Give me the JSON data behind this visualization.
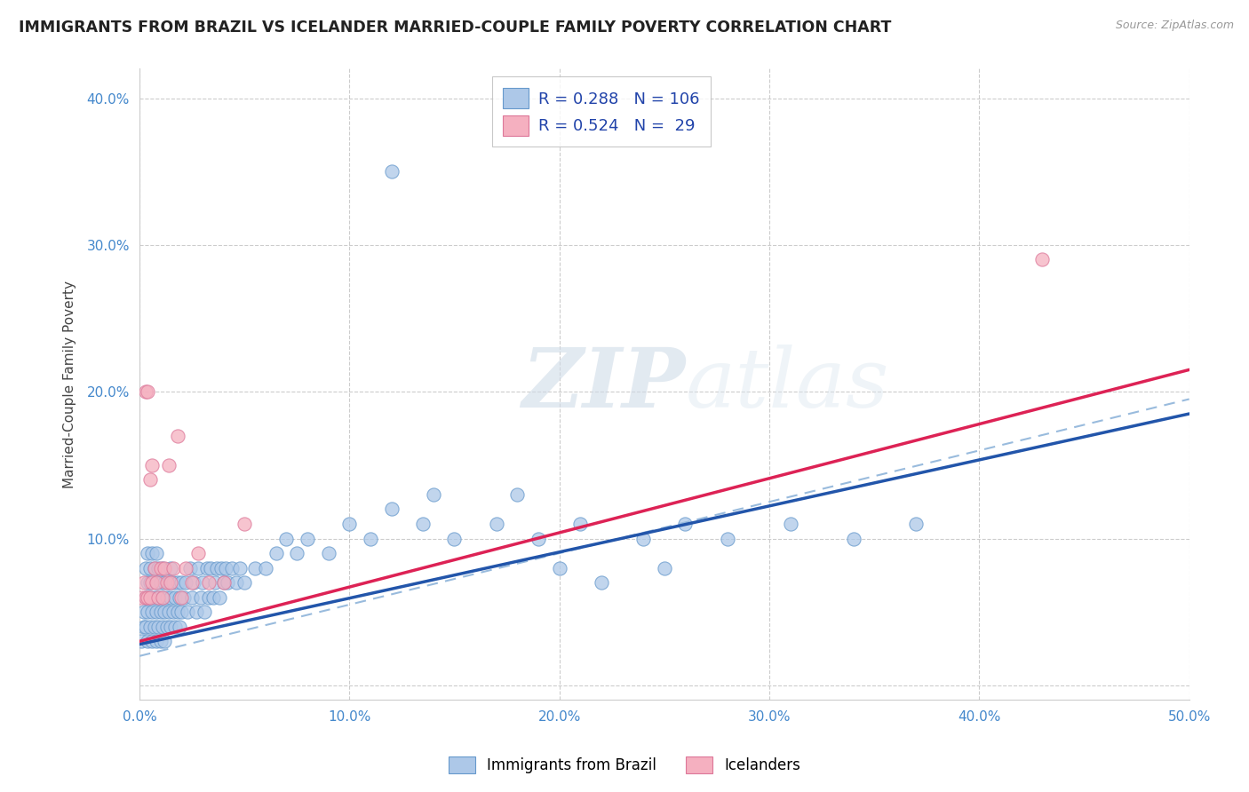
{
  "title": "IMMIGRANTS FROM BRAZIL VS ICELANDER MARRIED-COUPLE FAMILY POVERTY CORRELATION CHART",
  "source": "Source: ZipAtlas.com",
  "ylabel": "Married-Couple Family Poverty",
  "xlim": [
    0.0,
    0.5
  ],
  "ylim": [
    -0.01,
    0.42
  ],
  "xticks": [
    0.0,
    0.1,
    0.2,
    0.3,
    0.4,
    0.5
  ],
  "xtick_labels": [
    "0.0%",
    "10.0%",
    "20.0%",
    "30.0%",
    "40.0%",
    "50.0%"
  ],
  "yticks": [
    0.0,
    0.1,
    0.2,
    0.3,
    0.4
  ],
  "ytick_labels": [
    "",
    "10.0%",
    "20.0%",
    "30.0%",
    "40.0%"
  ],
  "brazil_color": "#adc8e8",
  "brazil_edge": "#6699cc",
  "iceland_color": "#f5b0c0",
  "iceland_edge": "#dd7799",
  "trend_brazil_color": "#2255aa",
  "trend_iceland_color": "#dd2255",
  "trend_dashed_color": "#99bbdd",
  "R_brazil": 0.288,
  "N_brazil": 106,
  "R_iceland": 0.524,
  "N_iceland": 29,
  "watermark_zip": "ZIP",
  "watermark_atlas": "atlas",
  "legend_brazil": "Immigrants from Brazil",
  "legend_iceland": "Icelanders",
  "brazil_x": [
    0.001,
    0.002,
    0.002,
    0.003,
    0.003,
    0.003,
    0.004,
    0.004,
    0.004,
    0.004,
    0.005,
    0.005,
    0.005,
    0.005,
    0.006,
    0.006,
    0.006,
    0.007,
    0.007,
    0.007,
    0.008,
    0.008,
    0.008,
    0.008,
    0.009,
    0.009,
    0.009,
    0.01,
    0.01,
    0.01,
    0.011,
    0.011,
    0.011,
    0.012,
    0.012,
    0.012,
    0.013,
    0.013,
    0.014,
    0.014,
    0.015,
    0.015,
    0.015,
    0.016,
    0.016,
    0.017,
    0.017,
    0.018,
    0.018,
    0.019,
    0.019,
    0.02,
    0.02,
    0.021,
    0.022,
    0.023,
    0.024,
    0.025,
    0.026,
    0.027,
    0.028,
    0.029,
    0.03,
    0.031,
    0.032,
    0.033,
    0.034,
    0.035,
    0.036,
    0.037,
    0.038,
    0.039,
    0.04,
    0.041,
    0.042,
    0.044,
    0.046,
    0.048,
    0.05,
    0.055,
    0.06,
    0.065,
    0.07,
    0.075,
    0.08,
    0.09,
    0.1,
    0.11,
    0.12,
    0.135,
    0.15,
    0.17,
    0.19,
    0.21,
    0.24,
    0.26,
    0.28,
    0.31,
    0.34,
    0.37,
    0.12,
    0.14,
    0.18,
    0.2,
    0.22,
    0.25
  ],
  "brazil_y": [
    0.03,
    0.05,
    0.04,
    0.06,
    0.08,
    0.04,
    0.05,
    0.07,
    0.09,
    0.03,
    0.06,
    0.08,
    0.04,
    0.07,
    0.05,
    0.09,
    0.03,
    0.06,
    0.08,
    0.04,
    0.07,
    0.05,
    0.09,
    0.03,
    0.06,
    0.08,
    0.04,
    0.05,
    0.07,
    0.03,
    0.06,
    0.08,
    0.04,
    0.05,
    0.07,
    0.03,
    0.06,
    0.04,
    0.07,
    0.05,
    0.06,
    0.08,
    0.04,
    0.05,
    0.07,
    0.06,
    0.04,
    0.07,
    0.05,
    0.06,
    0.04,
    0.07,
    0.05,
    0.06,
    0.07,
    0.05,
    0.08,
    0.06,
    0.07,
    0.05,
    0.08,
    0.06,
    0.07,
    0.05,
    0.08,
    0.06,
    0.08,
    0.06,
    0.07,
    0.08,
    0.06,
    0.08,
    0.07,
    0.08,
    0.07,
    0.08,
    0.07,
    0.08,
    0.07,
    0.08,
    0.08,
    0.09,
    0.1,
    0.09,
    0.1,
    0.09,
    0.11,
    0.1,
    0.12,
    0.11,
    0.1,
    0.11,
    0.1,
    0.11,
    0.1,
    0.11,
    0.1,
    0.11,
    0.1,
    0.11,
    0.35,
    0.13,
    0.13,
    0.08,
    0.07,
    0.08
  ],
  "iceland_x": [
    0.001,
    0.002,
    0.003,
    0.003,
    0.004,
    0.004,
    0.005,
    0.005,
    0.006,
    0.006,
    0.007,
    0.008,
    0.009,
    0.01,
    0.011,
    0.012,
    0.013,
    0.014,
    0.015,
    0.016,
    0.018,
    0.02,
    0.022,
    0.025,
    0.028,
    0.033,
    0.04,
    0.43,
    0.05
  ],
  "iceland_y": [
    0.06,
    0.07,
    0.2,
    0.06,
    0.2,
    0.06,
    0.14,
    0.06,
    0.15,
    0.07,
    0.08,
    0.07,
    0.06,
    0.08,
    0.06,
    0.08,
    0.07,
    0.15,
    0.07,
    0.08,
    0.17,
    0.06,
    0.08,
    0.07,
    0.09,
    0.07,
    0.07,
    0.29,
    0.11
  ],
  "brazil_line_x": [
    0.0,
    0.5
  ],
  "brazil_line_y": [
    0.028,
    0.185
  ],
  "iceland_line_x": [
    0.0,
    0.5
  ],
  "iceland_line_y": [
    0.03,
    0.215
  ],
  "dashed_line_x": [
    0.0,
    0.5
  ],
  "dashed_line_y": [
    0.02,
    0.195
  ]
}
